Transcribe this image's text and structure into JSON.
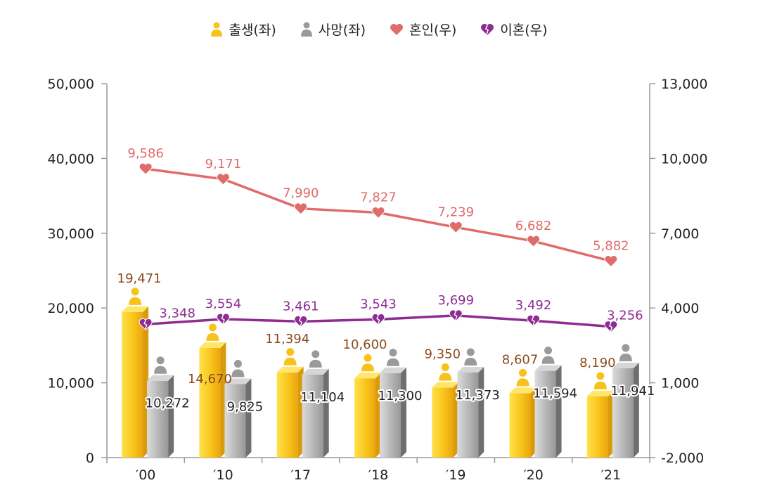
{
  "legend": [
    {
      "label": "출생(좌)",
      "icon": "person-gold-icon"
    },
    {
      "label": "사망(좌)",
      "icon": "person-gray-icon"
    },
    {
      "label": "혼인(우)",
      "icon": "heart-icon"
    },
    {
      "label": "이혼(우)",
      "icon": "broken-heart-icon"
    }
  ],
  "colors": {
    "birth": "#f7c21a",
    "death": "#9a9a9a",
    "marriage": "#e06b6b",
    "divorce": "#8e2c92",
    "axis": "#9a9a9a",
    "birth_label": "#8b4a1c",
    "death_label": "#222222"
  },
  "chart_data": {
    "type": "bar",
    "categories": [
      "′00",
      "′10",
      "′17",
      "′18",
      "′19",
      "′20",
      "′21"
    ],
    "series": [
      {
        "name": "출생(좌)",
        "axis": "left",
        "kind": "bar",
        "values": [
          19471,
          14670,
          11394,
          10600,
          9350,
          8607,
          8190
        ],
        "labels": [
          "19,471",
          "14,670",
          "11,394",
          "10,600",
          "9,350",
          "8,607",
          "8,190"
        ]
      },
      {
        "name": "사망(좌)",
        "axis": "left",
        "kind": "bar",
        "values": [
          10272,
          9825,
          11104,
          11300,
          11373,
          11594,
          11941
        ],
        "labels": [
          "10,272",
          "9,825",
          "11,104",
          "11,300",
          "11,373",
          "11,594",
          "11,941"
        ]
      },
      {
        "name": "혼인(우)",
        "axis": "right",
        "kind": "line",
        "values": [
          9586,
          9171,
          7990,
          7827,
          7239,
          6682,
          5882
        ],
        "labels": [
          "9,586",
          "9,171",
          "7,990",
          "7,827",
          "7,239",
          "6,682",
          "5,882"
        ]
      },
      {
        "name": "이혼(우)",
        "axis": "right",
        "kind": "line",
        "values": [
          3348,
          3554,
          3461,
          3543,
          3699,
          3492,
          3256
        ],
        "labels": [
          "3,348",
          "3,554",
          "3,461",
          "3,543",
          "3,699",
          "3,492",
          "3,256"
        ]
      }
    ],
    "y_left": {
      "min": 0,
      "max": 50000,
      "ticks": [
        0,
        10000,
        20000,
        30000,
        40000,
        50000
      ],
      "tick_labels": [
        "0",
        "10,000",
        "20,000",
        "30,000",
        "40,000",
        "50,000"
      ]
    },
    "y_right": {
      "min": -2000,
      "max": 13000,
      "ticks": [
        -2000,
        1000,
        4000,
        7000,
        10000,
        13000
      ],
      "tick_labels": [
        "-2,000",
        "1,000",
        "4,000",
        "7,000",
        "10,000",
        "13,000"
      ]
    },
    "grid": false,
    "legend_position": "top"
  }
}
